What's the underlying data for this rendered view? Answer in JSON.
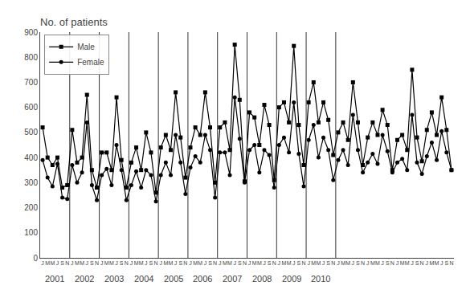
{
  "chart_data": {
    "type": "line",
    "title": "No. of patients",
    "categories": [
      "J",
      "M",
      "M",
      "J",
      "S",
      "N",
      "J",
      "M",
      "M",
      "J",
      "S",
      "N",
      "J",
      "M",
      "M",
      "J",
      "S",
      "N",
      "J",
      "M",
      "M",
      "J",
      "S",
      "N",
      "J",
      "M",
      "M",
      "J",
      "S",
      "N",
      "J",
      "M",
      "M",
      "J",
      "S",
      "N",
      "J",
      "M",
      "M",
      "J",
      "S",
      "N",
      "J",
      "M",
      "M",
      "J",
      "S",
      "N",
      "J",
      "M",
      "M",
      "J",
      "S",
      "N",
      "J",
      "M",
      "M",
      "J",
      "S",
      "N",
      "J",
      "M",
      "M",
      "J",
      "S",
      "N",
      "J",
      "M",
      "M",
      "J",
      "S",
      "N",
      "J",
      "M",
      "M",
      "J",
      "S",
      "N",
      "J",
      "M",
      "M",
      "J",
      "S",
      "N"
    ],
    "series": [
      {
        "name": "Male",
        "color": "#000000",
        "marker": "square",
        "values": [
          520,
          400,
          370,
          400,
          280,
          290,
          510,
          380,
          400,
          650,
          350,
          280,
          420,
          420,
          350,
          640,
          390,
          280,
          380,
          440,
          350,
          500,
          420,
          260,
          440,
          490,
          430,
          660,
          480,
          320,
          440,
          520,
          490,
          660,
          520,
          300,
          520,
          540,
          430,
          850,
          630,
          305,
          580,
          560,
          450,
          610,
          530,
          310,
          600,
          620,
          540,
          845,
          530,
          370,
          620,
          700,
          540,
          620,
          550,
          410,
          500,
          540,
          470,
          700,
          540,
          370,
          480,
          540,
          490,
          590,
          530,
          350,
          470,
          490,
          430,
          750,
          480,
          385,
          510,
          580,
          490,
          640,
          510,
          350
        ]
      },
      {
        "name": "Female",
        "color": "#000000",
        "marker": "circle",
        "values": [
          390,
          320,
          285,
          375,
          240,
          235,
          370,
          300,
          340,
          540,
          290,
          230,
          330,
          355,
          290,
          450,
          350,
          230,
          290,
          345,
          280,
          350,
          330,
          225,
          330,
          380,
          330,
          490,
          380,
          255,
          360,
          405,
          380,
          490,
          430,
          240,
          420,
          420,
          330,
          640,
          475,
          300,
          430,
          450,
          340,
          430,
          410,
          280,
          450,
          480,
          420,
          620,
          415,
          285,
          470,
          530,
          400,
          480,
          430,
          310,
          390,
          430,
          370,
          570,
          430,
          340,
          380,
          415,
          375,
          490,
          425,
          340,
          380,
          395,
          350,
          570,
          380,
          335,
          405,
          460,
          390,
          505,
          420,
          350
        ]
      }
    ],
    "annotations": [
      {
        "text": "2001",
        "x": 2.5
      },
      {
        "text": "2002",
        "x": 8.5
      },
      {
        "text": "2003",
        "x": 14.5
      },
      {
        "text": "2004",
        "x": 20.5
      },
      {
        "text": "2005",
        "x": 26.5
      },
      {
        "text": "2006",
        "x": 32.5
      },
      {
        "text": "2007",
        "x": 38.5
      },
      {
        "text": "2008",
        "x": 44.5
      },
      {
        "text": "2009",
        "x": 50.5
      },
      {
        "text": "2010",
        "x": 56.5
      }
    ],
    "vlines": [
      5.5,
      11.5,
      17.5,
      23.5,
      29.5,
      35.5,
      41.5,
      47.5,
      53.5,
      59.5
    ],
    "ylim": [
      0,
      900
    ],
    "yticks": [
      0,
      100,
      200,
      300,
      400,
      500,
      600,
      700,
      800,
      900
    ],
    "grid": false,
    "legend": "upper left"
  }
}
